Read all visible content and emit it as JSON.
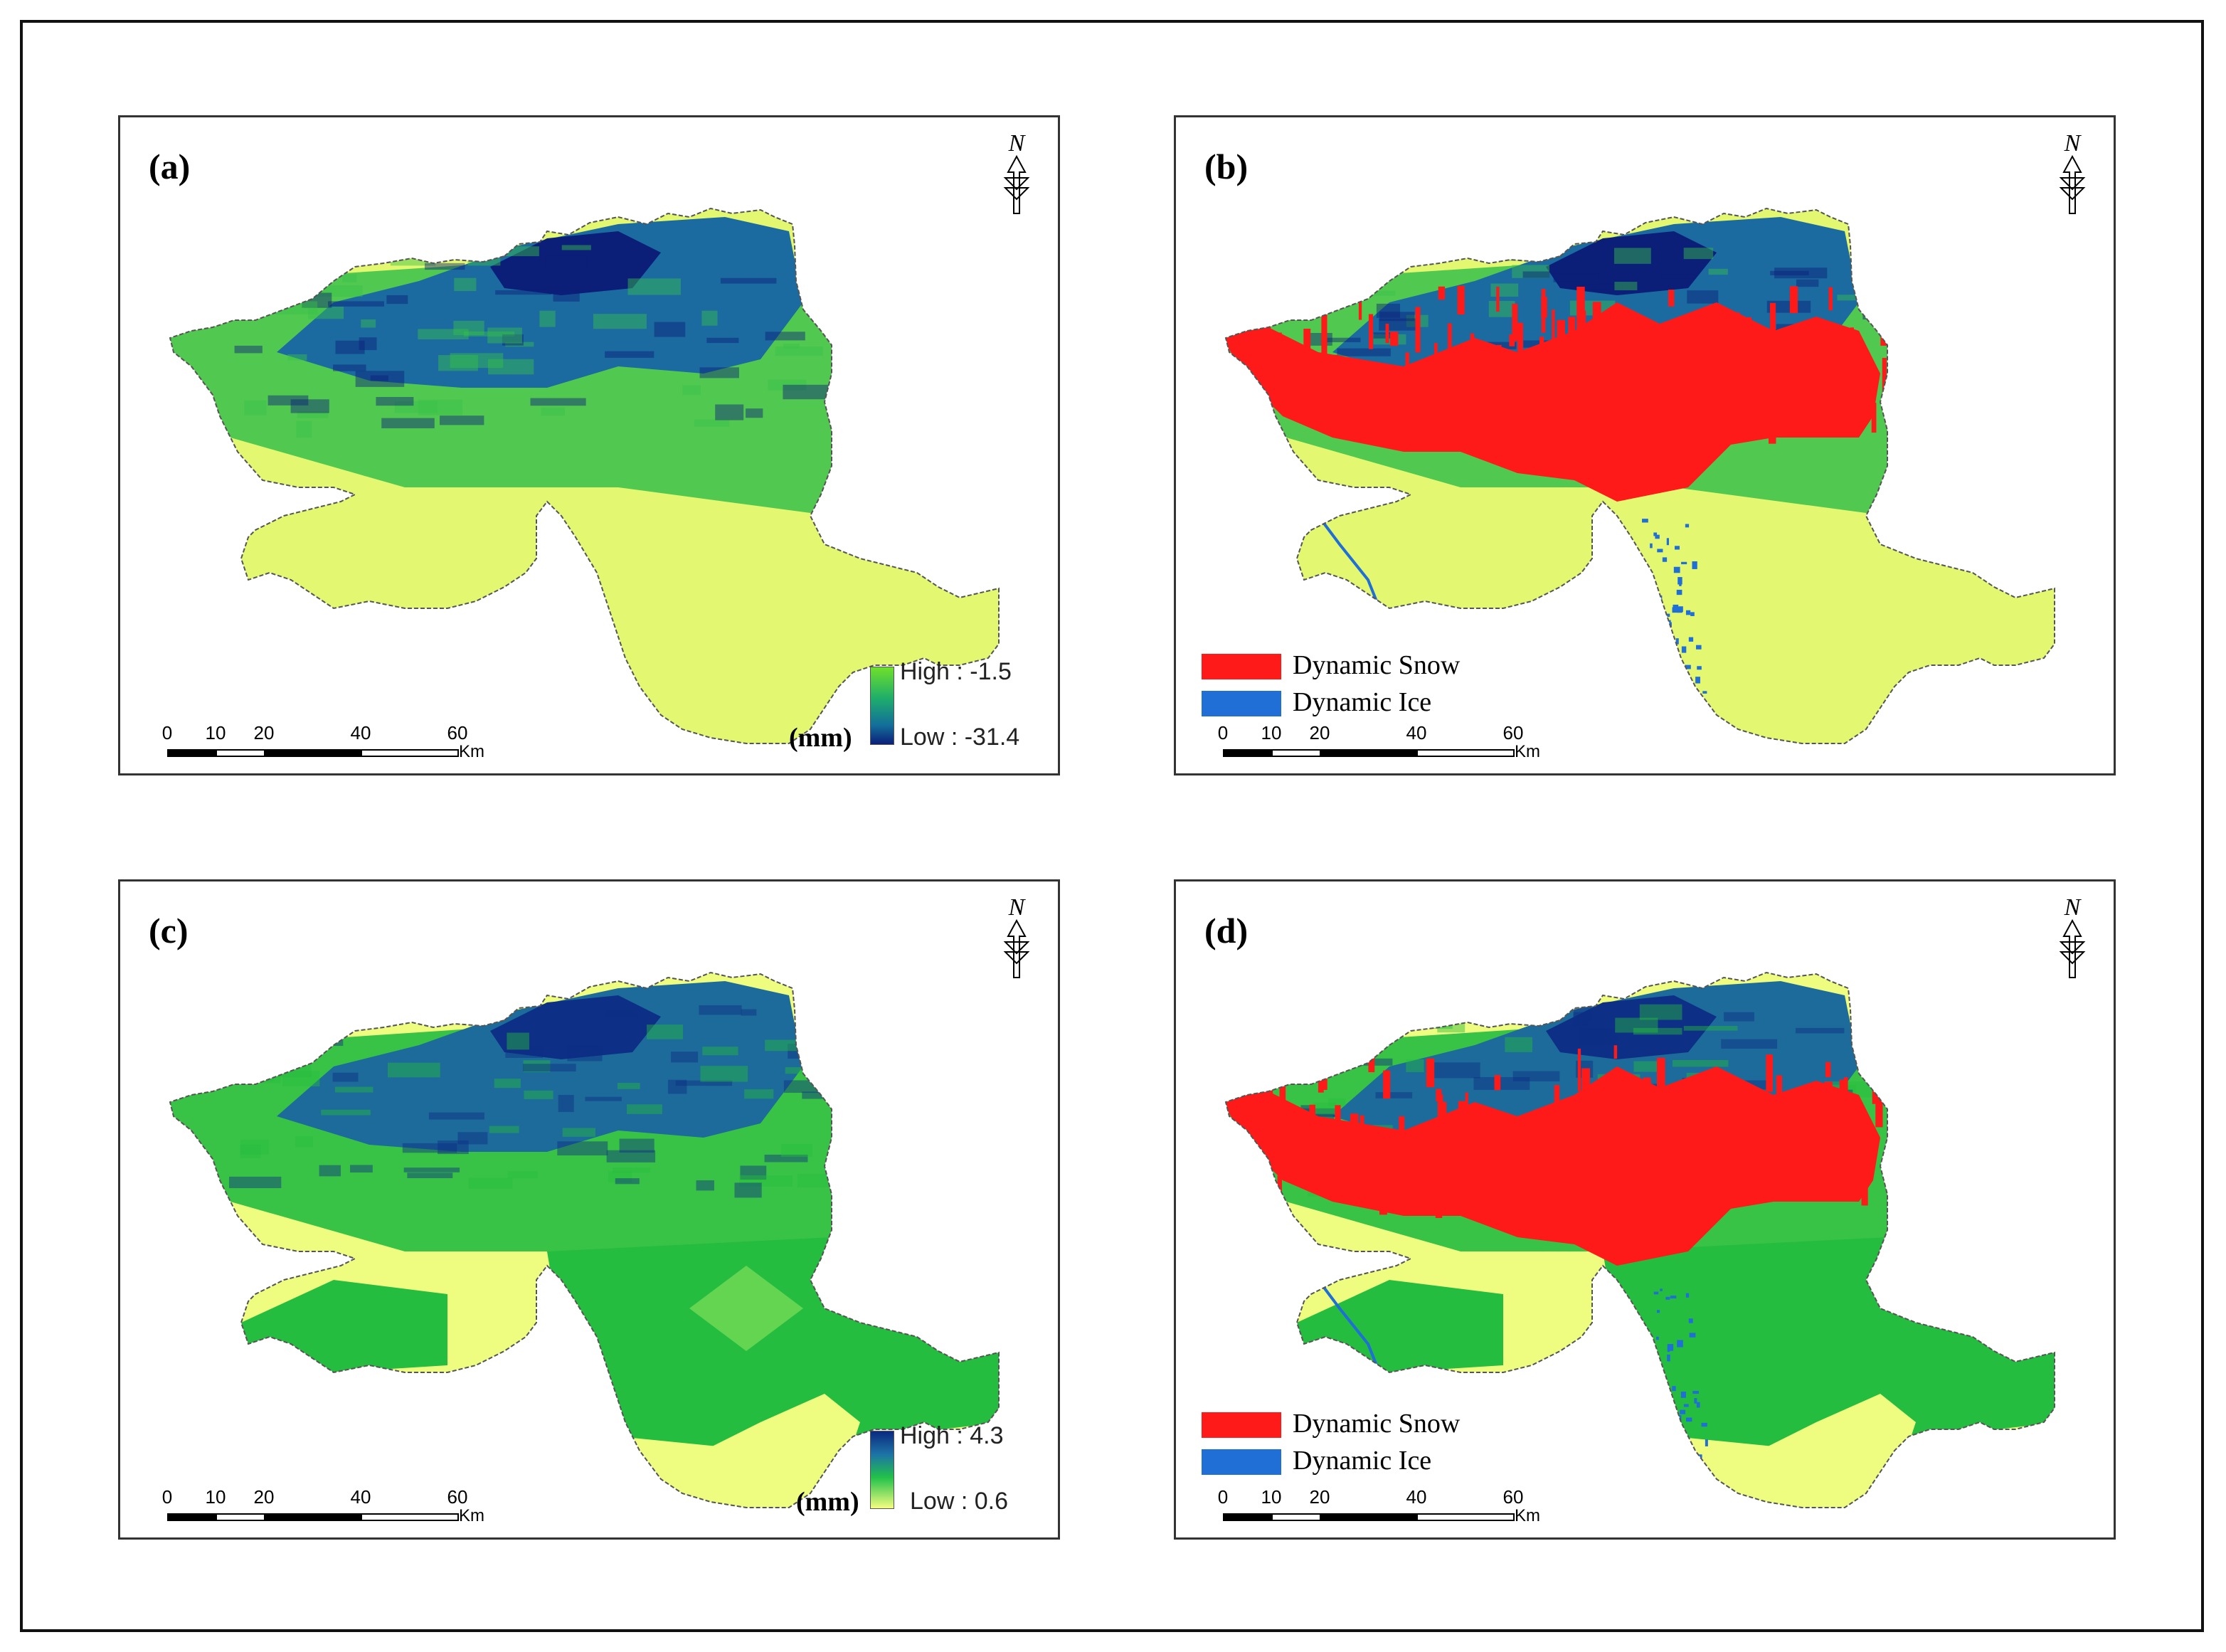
{
  "figure": {
    "panels": [
      {
        "id": "a",
        "label": "(a)",
        "north_label": "N",
        "type": "continuous",
        "legend": {
          "high": "High : -1.5",
          "low": "Low : -31.4",
          "unit": "(mm)"
        },
        "colors": {
          "mountain": "#1b6aa0",
          "dark": "#0b1f78",
          "mid": "#37c04a",
          "plain": "#e3f770"
        }
      },
      {
        "id": "b",
        "label": "(b)",
        "north_label": "N",
        "type": "classified",
        "legend": {
          "items": [
            {
              "label": "Dynamic Snow",
              "color": "#ff1a1a"
            },
            {
              "label": "Dynamic Ice",
              "color": "#1f6fd6"
            }
          ]
        },
        "colors": {
          "mountain": "#1b6aa0",
          "dark": "#0b1f78",
          "mid": "#37c04a",
          "plain": "#e3f770",
          "snow": "#ff1a1a"
        }
      },
      {
        "id": "c",
        "label": "(c)",
        "north_label": "N",
        "type": "continuous",
        "legend": {
          "high": "High : 4.3",
          "low": "Low : 0.6",
          "unit": "(mm)"
        },
        "colors": {
          "mountain": "#1d6b9a",
          "dark": "#0e2f86",
          "mid": "#25bd3f",
          "plain": "#eefc80"
        }
      },
      {
        "id": "d",
        "label": "(d)",
        "north_label": "N",
        "type": "classified",
        "legend": {
          "items": [
            {
              "label": "Dynamic Snow",
              "color": "#ff1a1a"
            },
            {
              "label": "Dynamic Ice",
              "color": "#1f6fd6"
            }
          ]
        },
        "colors": {
          "mountain": "#1d6b9a",
          "dark": "#0e2f86",
          "mid": "#25bd3f",
          "plain": "#eefc80",
          "snow": "#ff1a1a"
        }
      }
    ],
    "scale_bar": {
      "ticks": [
        "0",
        "10",
        "20",
        "40",
        "60"
      ],
      "unit": "Km"
    }
  }
}
